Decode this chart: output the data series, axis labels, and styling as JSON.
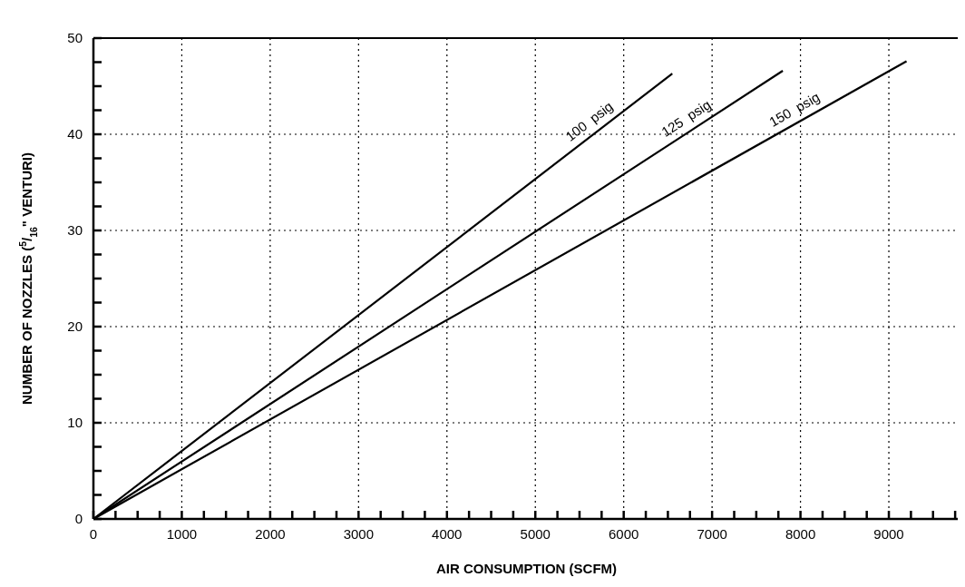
{
  "chart_data": {
    "type": "line",
    "xlabel": "AIR CONSUMPTION (SCFM)",
    "ylabel": "NUMBER OF NOZZLES ($^{5}$/$_{16}$\" VENTURI)",
    "xlim": [
      0,
      9800
    ],
    "ylim": [
      0,
      50
    ],
    "xticks": [
      0,
      {
        "value": 250,
        "label": null
      },
      {
        "value": 500,
        "label": null
      },
      {
        "value": 750,
        "label": null
      },
      1000,
      {
        "value": 1250,
        "label": null
      },
      {
        "value": 1500,
        "label": null
      },
      {
        "value": 1750,
        "label": null
      },
      2000,
      {
        "value": 2250,
        "label": null
      },
      {
        "value": 2500,
        "label": null
      },
      {
        "value": 2750,
        "label": null
      },
      3000,
      {
        "value": 3250,
        "label": null
      },
      {
        "value": 3500,
        "label": null
      },
      {
        "value": 3750,
        "label": null
      },
      4000,
      {
        "value": 4250,
        "label": null
      },
      {
        "value": 4500,
        "label": null
      },
      {
        "value": 4750,
        "label": null
      },
      5000,
      {
        "value": 5250,
        "label": null
      },
      {
        "value": 5500,
        "label": null
      },
      {
        "value": 5750,
        "label": null
      },
      6000,
      {
        "value": 6250,
        "label": null
      },
      {
        "value": 6500,
        "label": null
      },
      {
        "value": 6750,
        "label": null
      },
      7000,
      {
        "value": 7250,
        "label": null
      },
      {
        "value": 7500,
        "label": null
      },
      {
        "value": 7750,
        "label": null
      },
      8000,
      {
        "value": 8250,
        "label": null
      },
      {
        "value": 8500,
        "label": null
      },
      {
        "value": 8750,
        "label": null
      },
      9000,
      {
        "value": 9250,
        "label": null
      },
      {
        "value": 9500,
        "label": null
      },
      {
        "value": 9750,
        "label": null
      }
    ],
    "yticks": [
      0,
      {
        "value": 2.5,
        "label": null
      },
      {
        "value": 5,
        "label": null
      },
      {
        "value": 7.5,
        "label": null
      },
      10,
      {
        "value": 12.5,
        "label": null
      },
      {
        "value": 15,
        "label": null
      },
      {
        "value": 17.5,
        "label": null
      },
      20,
      {
        "value": 22.5,
        "label": null
      },
      {
        "value": 25,
        "label": null
      },
      {
        "value": 27.5,
        "label": null
      },
      30,
      {
        "value": 32.5,
        "label": null
      },
      {
        "value": 35,
        "label": null
      },
      {
        "value": 37.5,
        "label": null
      },
      40,
      {
        "value": 42.5,
        "label": null
      },
      {
        "value": 45,
        "label": null
      },
      {
        "value": 47.5,
        "label": null
      },
      50
    ],
    "grid": true,
    "marker": "none",
    "line_style": "solid",
    "series": [
      {
        "name": "100  psig",
        "color": "#000000",
        "x": [
          0,
          6550
        ],
        "values": [
          0,
          46.3
        ]
      },
      {
        "name": "125  psig",
        "color": "#000000",
        "x": [
          0,
          7800
        ],
        "values": [
          0,
          46.6
        ]
      },
      {
        "name": "150  psig",
        "color": "#000000",
        "x": [
          0,
          9200
        ],
        "values": [
          0,
          47.6
        ]
      }
    ]
  }
}
